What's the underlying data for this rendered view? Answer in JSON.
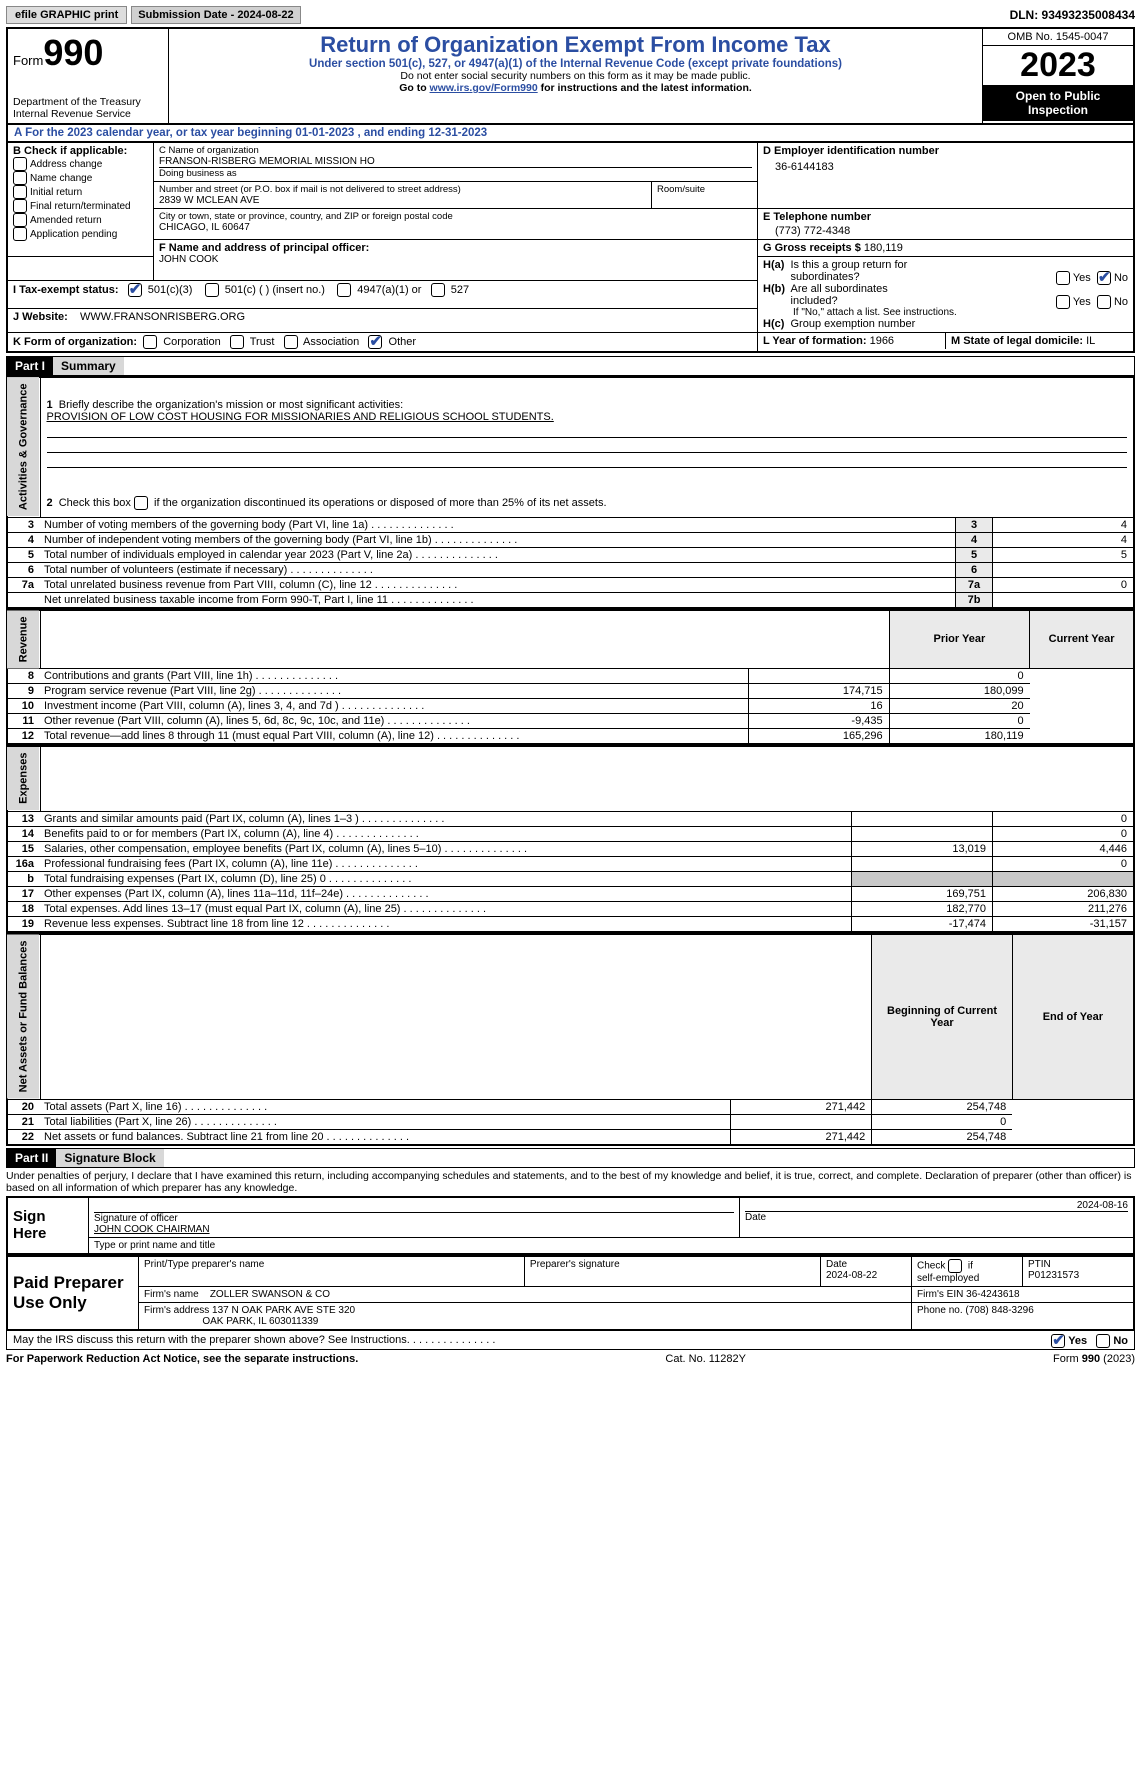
{
  "topbar": {
    "efile": "efile GRAPHIC print",
    "submission_label": "Submission Date - 2024-08-22",
    "dln_label": "DLN: 93493235008434"
  },
  "header": {
    "form_label": "Form",
    "form_number": "990",
    "dept": "Department of the Treasury\nInternal Revenue Service",
    "title": "Return of Organization Exempt From Income Tax",
    "subtitle": "Under section 501(c), 527, or 4947(a)(1) of the Internal Revenue Code (except private foundations)",
    "note1": "Do not enter social security numbers on this form as it may be made public.",
    "note2_pre": "Go to ",
    "note2_link": "www.irs.gov/Form990",
    "note2_post": " for instructions and the latest information.",
    "omb": "OMB No. 1545-0047",
    "year": "2023",
    "open": "Open to Public Inspection"
  },
  "section_a": "For the 2023 calendar year, or tax year beginning 01-01-2023    , and ending 12-31-2023",
  "b": {
    "label": "B Check if applicable:",
    "items": [
      "Address change",
      "Name change",
      "Initial return",
      "Final return/terminated",
      "Amended return",
      "Application pending"
    ]
  },
  "c": {
    "name_lbl": "C Name of organization",
    "name": "FRANSON-RISBERG MEMORIAL MISSION HO",
    "dba_lbl": "Doing business as",
    "dba": "",
    "street_lbl": "Number and street (or P.O. box if mail is not delivered to street address)",
    "street": "2839 W MCLEAN AVE",
    "room_lbl": "Room/suite",
    "room": "",
    "city_lbl": "City or town, state or province, country, and ZIP or foreign postal code",
    "city": "CHICAGO, IL  60647"
  },
  "d": {
    "lbl": "D Employer identification number",
    "val": "36-6144183"
  },
  "e": {
    "lbl": "E Telephone number",
    "val": "(773) 772-4348"
  },
  "g": {
    "lbl": "G Gross receipts $",
    "val": "180,119"
  },
  "f": {
    "lbl": "F  Name and address of principal officer:",
    "val": "JOHN COOK"
  },
  "h": {
    "a_lbl": "H(a)  Is this a group return for subordinates?",
    "b_lbl": "H(b)  Are all subordinates included?",
    "note": "If \"No,\" attach a list. See instructions.",
    "c_lbl": "H(c)  Group exemption number",
    "yes": "Yes",
    "no": "No"
  },
  "i": {
    "lbl": "I   Tax-exempt status:",
    "opts": [
      "501(c)(3)",
      "501(c) (  ) (insert no.)",
      "4947(a)(1) or",
      "527"
    ]
  },
  "j": {
    "lbl": "J    Website:",
    "val": "WWW.FRANSONRISBERG.ORG"
  },
  "k": {
    "lbl": "K Form of organization:",
    "opts": [
      "Corporation",
      "Trust",
      "Association",
      "Other"
    ]
  },
  "l": {
    "lbl": "L Year of formation:",
    "val": "1966"
  },
  "m": {
    "lbl": "M State of legal domicile:",
    "val": "IL"
  },
  "part1": {
    "hdr": "Part I",
    "title": "Summary",
    "line1_lbl": "Briefly describe the organization's mission or most significant activities:",
    "line1_val": "PROVISION OF LOW COST HOUSING FOR MISSIONARIES AND RELIGIOUS SCHOOL STUDENTS.",
    "line2": "Check this box      if the organization discontinued its operations or disposed of more than 25% of its net assets.",
    "tab_ag": "Activities & Governance",
    "tab_rev": "Revenue",
    "tab_exp": "Expenses",
    "tab_na": "Net Assets or Fund Balances",
    "prior": "Prior Year",
    "current": "Current Year",
    "begin": "Beginning of Current Year",
    "end": "End of Year",
    "rows_ag": [
      {
        "n": "3",
        "t": "Number of voting members of the governing body (Part VI, line 1a)",
        "box": "3",
        "v": "4"
      },
      {
        "n": "4",
        "t": "Number of independent voting members of the governing body (Part VI, line 1b)",
        "box": "4",
        "v": "4"
      },
      {
        "n": "5",
        "t": "Total number of individuals employed in calendar year 2023 (Part V, line 2a)",
        "box": "5",
        "v": "5"
      },
      {
        "n": "6",
        "t": "Total number of volunteers (estimate if necessary)",
        "box": "6",
        "v": ""
      },
      {
        "n": "7a",
        "t": "Total unrelated business revenue from Part VIII, column (C), line 12",
        "box": "7a",
        "v": "0"
      },
      {
        "n": "",
        "t": "Net unrelated business taxable income from Form 990-T, Part I, line 11",
        "box": "7b",
        "v": ""
      }
    ],
    "rows_rev": [
      {
        "n": "8",
        "t": "Contributions and grants (Part VIII, line 1h)",
        "p": "",
        "c": "0"
      },
      {
        "n": "9",
        "t": "Program service revenue (Part VIII, line 2g)",
        "p": "174,715",
        "c": "180,099"
      },
      {
        "n": "10",
        "t": "Investment income (Part VIII, column (A), lines 3, 4, and 7d )",
        "p": "16",
        "c": "20"
      },
      {
        "n": "11",
        "t": "Other revenue (Part VIII, column (A), lines 5, 6d, 8c, 9c, 10c, and 11e)",
        "p": "-9,435",
        "c": "0"
      },
      {
        "n": "12",
        "t": "Total revenue—add lines 8 through 11 (must equal Part VIII, column (A), line 12)",
        "p": "165,296",
        "c": "180,119"
      }
    ],
    "rows_exp": [
      {
        "n": "13",
        "t": "Grants and similar amounts paid (Part IX, column (A), lines 1–3 )",
        "p": "",
        "c": "0"
      },
      {
        "n": "14",
        "t": "Benefits paid to or for members (Part IX, column (A), line 4)",
        "p": "",
        "c": "0"
      },
      {
        "n": "15",
        "t": "Salaries, other compensation, employee benefits (Part IX, column (A), lines 5–10)",
        "p": "13,019",
        "c": "4,446"
      },
      {
        "n": "16a",
        "t": "Professional fundraising fees (Part IX, column (A), line 11e)",
        "p": "",
        "c": "0"
      },
      {
        "n": "b",
        "t": "Total fundraising expenses (Part IX, column (D), line 25) 0",
        "p": "shade",
        "c": "shade"
      },
      {
        "n": "17",
        "t": "Other expenses (Part IX, column (A), lines 11a–11d, 11f–24e)",
        "p": "169,751",
        "c": "206,830"
      },
      {
        "n": "18",
        "t": "Total expenses. Add lines 13–17 (must equal Part IX, column (A), line 25)",
        "p": "182,770",
        "c": "211,276"
      },
      {
        "n": "19",
        "t": "Revenue less expenses. Subtract line 18 from line 12",
        "p": "-17,474",
        "c": "-31,157"
      }
    ],
    "rows_na": [
      {
        "n": "20",
        "t": "Total assets (Part X, line 16)",
        "p": "271,442",
        "c": "254,748"
      },
      {
        "n": "21",
        "t": "Total liabilities (Part X, line 26)",
        "p": "",
        "c": "0"
      },
      {
        "n": "22",
        "t": "Net assets or fund balances. Subtract line 21 from line 20",
        "p": "271,442",
        "c": "254,748"
      }
    ]
  },
  "part2": {
    "hdr": "Part II",
    "title": "Signature Block",
    "decl": "Under penalties of perjury, I declare that I have examined this return, including accompanying schedules and statements, and to the best of my knowledge and belief, it is true, correct, and complete. Declaration of preparer (other than officer) is based on all information of which preparer has any knowledge."
  },
  "sign": {
    "here": "Sign Here",
    "sig_lbl": "Signature of officer",
    "date_lbl": "Date",
    "date": "2024-08-16",
    "name": "JOHN COOK  CHAIRMAN",
    "name_lbl": "Type or print name and title"
  },
  "preparer": {
    "lbl": "Paid Preparer Use Only",
    "col1": "Print/Type preparer's name",
    "col2": "Preparer's signature",
    "col3_lbl": "Date",
    "col3": "2024-08-22",
    "col4_lbl": "Check        if self-employed",
    "col5_lbl": "PTIN",
    "col5": "P01231573",
    "firm_name_lbl": "Firm's name",
    "firm_name": "ZOLLER SWANSON & CO",
    "firm_ein_lbl": "Firm's EIN",
    "firm_ein": "36-4243618",
    "firm_addr_lbl": "Firm's address",
    "firm_addr1": "137 N OAK PARK AVE STE 320",
    "firm_addr2": "OAK PARK, IL  603011339",
    "phone_lbl": "Phone no.",
    "phone": "(708) 848-3296"
  },
  "discuss": {
    "q": "May the IRS discuss this return with the preparer shown above? See Instructions.",
    "yes": "Yes",
    "no": "No"
  },
  "footer": {
    "left": "For Paperwork Reduction Act Notice, see the separate instructions.",
    "mid": "Cat. No. 11282Y",
    "right_pre": "Form ",
    "right_b": "990",
    "right_post": " (2023)"
  }
}
